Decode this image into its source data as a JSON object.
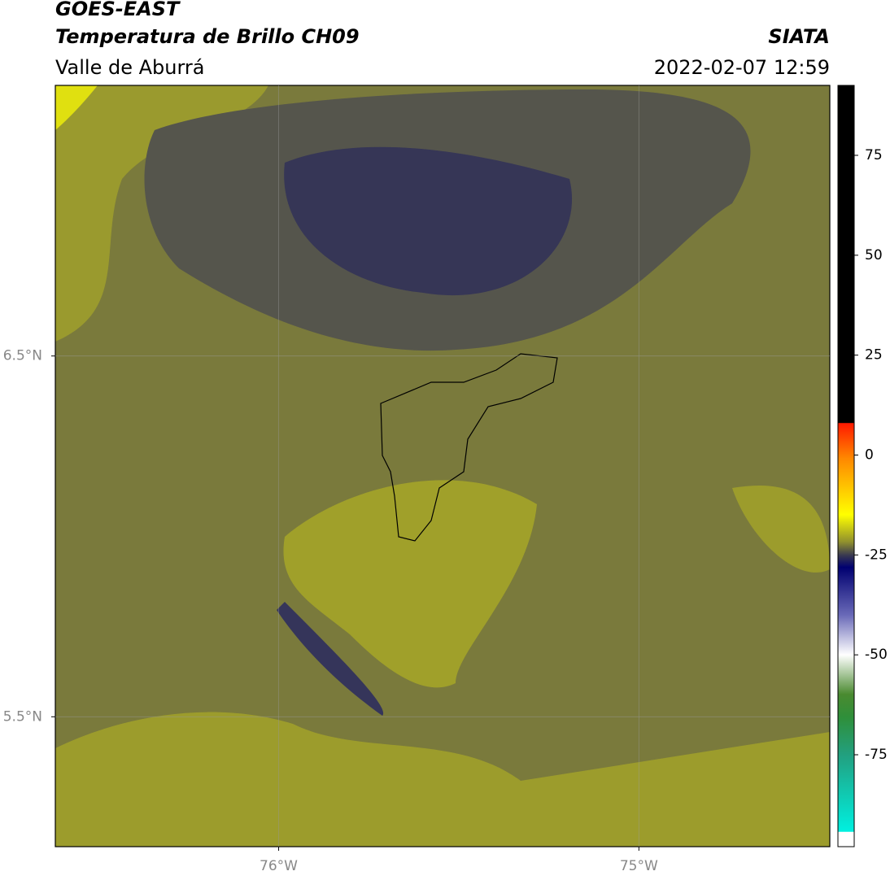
{
  "header": {
    "title": "GOES-EAST",
    "subtitle": "Temperatura de Brillo CH09",
    "region": "Valle de Aburrá",
    "source": "SIATA",
    "datetime": "2022-02-07 12:59"
  },
  "map": {
    "lon_range": [
      -76.62,
      -74.47
    ],
    "lat_range": [
      5.14,
      7.25
    ],
    "lat_ticks": [
      {
        "value": 6.5,
        "label": "6.5°N"
      },
      {
        "value": 5.5,
        "label": "5.5°N"
      }
    ],
    "lon_ticks": [
      {
        "value": -76,
        "label": "76°W"
      },
      {
        "value": -75,
        "label": "75°W"
      }
    ],
    "grid": true
  },
  "colorbar": {
    "lim": [
      -98,
      92.5
    ],
    "ticks": [
      75,
      50,
      25,
      0,
      -25,
      -50,
      -75
    ]
  }
}
